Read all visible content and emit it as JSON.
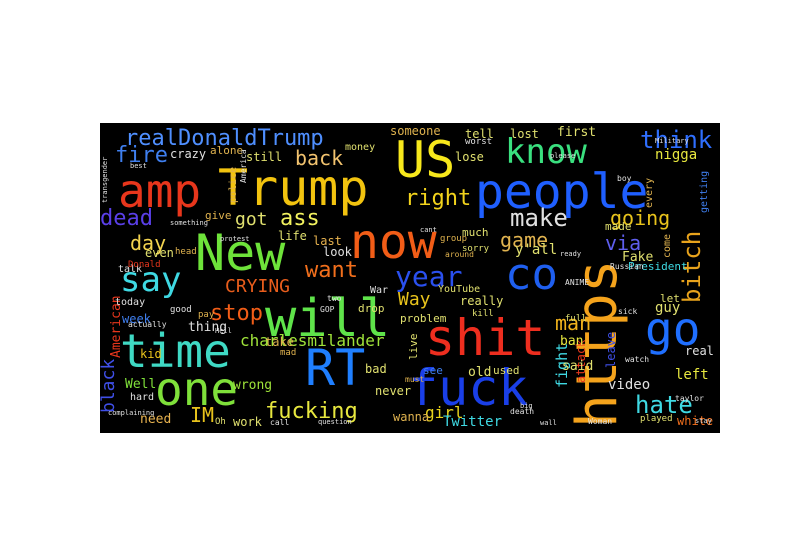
{
  "words": [
    {
      "text": "Trump",
      "color": "#f2c30f"
    },
    {
      "text": "people",
      "color": "#1f5fff"
    },
    {
      "text": "amp",
      "color": "#e8361c"
    },
    {
      "text": "US",
      "color": "#f7e81c"
    },
    {
      "text": "New",
      "color": "#6ee33a"
    },
    {
      "text": "now",
      "color": "#f25d17"
    },
    {
      "text": "will",
      "color": "#5fe34a"
    },
    {
      "text": "shit",
      "color": "#ee2e1f"
    },
    {
      "text": "https",
      "color": "#f4a31c"
    },
    {
      "text": "time",
      "color": "#3fd9c4"
    },
    {
      "text": "one",
      "color": "#7fe03a"
    },
    {
      "text": "RT",
      "color": "#1f7fff"
    },
    {
      "text": "fuck",
      "color": "#1a3fe8"
    },
    {
      "text": "go",
      "color": "#1f6fff"
    },
    {
      "text": "co",
      "color": "#1f5fef"
    },
    {
      "text": "know",
      "color": "#3ae07f"
    },
    {
      "text": "realDonaldTrump",
      "color": "#4f8fff"
    },
    {
      "text": "think",
      "color": "#2f6fff"
    },
    {
      "text": "say",
      "color": "#3fd9e3"
    },
    {
      "text": "year",
      "color": "#2a50ef"
    },
    {
      "text": "bitch",
      "color": "#e8a31c"
    },
    {
      "text": "dead",
      "color": "#5a3fe8"
    },
    {
      "text": "fire",
      "color": "#3f7fef"
    },
    {
      "text": "right",
      "color": "#f2d31c"
    },
    {
      "text": "make",
      "color": "#e0e0e0"
    },
    {
      "text": "going",
      "color": "#e8c31c"
    },
    {
      "text": "ass",
      "color": "#f2f25f"
    },
    {
      "text": "back",
      "color": "#f2c36f"
    },
    {
      "text": "day",
      "color": "#f2d34f"
    },
    {
      "text": "got",
      "color": "#e0e06f"
    },
    {
      "text": "want",
      "color": "#f26f1c"
    },
    {
      "text": "game",
      "color": "#e0b34f"
    },
    {
      "text": "stop",
      "color": "#f25d17"
    },
    {
      "text": "CRYING",
      "color": "#e85d1c"
    },
    {
      "text": "man",
      "color": "#f2b31c"
    },
    {
      "text": "hate",
      "color": "#3fd9e3"
    },
    {
      "text": "fucking",
      "color": "#e8e83f"
    },
    {
      "text": "Way",
      "color": "#e8c31c"
    },
    {
      "text": "via",
      "color": "#5f5fef"
    },
    {
      "text": "black",
      "color": "#3f4fe8"
    },
    {
      "text": "charlesmilander",
      "color": "#9fe33a"
    },
    {
      "text": "IM",
      "color": "#e8c31c"
    },
    {
      "text": "girl",
      "color": "#e8d31c"
    },
    {
      "text": "Twitter",
      "color": "#3fd9e3"
    },
    {
      "text": "video",
      "color": "#e0e0e0"
    },
    {
      "text": "white",
      "color": "#f26f1c"
    },
    {
      "text": "left",
      "color": "#e8e83f"
    },
    {
      "text": "need",
      "color": "#e8b34f"
    },
    {
      "text": "wrong",
      "color": "#9fe33a"
    },
    {
      "text": "thing",
      "color": "#e0e0e0"
    },
    {
      "text": "Well",
      "color": "#7fe03a"
    },
    {
      "text": "kid",
      "color": "#e8c31c"
    },
    {
      "text": "week",
      "color": "#3f7fef"
    },
    {
      "text": "American",
      "color": "#e8361c"
    },
    {
      "text": "fight",
      "color": "#3fd9e3"
    },
    {
      "text": "attack",
      "color": "#e8361c"
    },
    {
      "text": "guy",
      "color": "#e0e06f"
    },
    {
      "text": "said",
      "color": "#e0e06f"
    },
    {
      "text": "ban",
      "color": "#e8e83f"
    },
    {
      "text": "leave",
      "color": "#3f4fe8"
    },
    {
      "text": "real",
      "color": "#e0e0e0"
    },
    {
      "text": "y'all",
      "color": "#e0e06f"
    },
    {
      "text": "Fake",
      "color": "#e0e06f"
    },
    {
      "text": "President",
      "color": "#3fd9e3"
    },
    {
      "text": "nigga",
      "color": "#e8e83f"
    },
    {
      "text": "crazy",
      "color": "#e0e0e0"
    },
    {
      "text": "someone",
      "color": "#e0b34f"
    },
    {
      "text": "tell",
      "color": "#e0e06f"
    },
    {
      "text": "lost",
      "color": "#e0e06f"
    },
    {
      "text": "first",
      "color": "#e0e06f"
    },
    {
      "text": "still",
      "color": "#e0e06f"
    },
    {
      "text": "lose",
      "color": "#e0e06f"
    },
    {
      "text": "alone",
      "color": "#e0b34f"
    },
    {
      "text": "money",
      "color": "#e0e06f"
    },
    {
      "text": "give",
      "color": "#e0b34f"
    },
    {
      "text": "life",
      "color": "#e0e06f"
    },
    {
      "text": "last",
      "color": "#e8b34f"
    },
    {
      "text": "look",
      "color": "#e0e0e0"
    },
    {
      "text": "even",
      "color": "#e0e06f"
    },
    {
      "text": "talk",
      "color": "#e0e0e0"
    },
    {
      "text": "today",
      "color": "#e0e0e0"
    },
    {
      "text": "really",
      "color": "#e0e06f"
    },
    {
      "text": "problem",
      "color": "#e0e06f"
    },
    {
      "text": "bad",
      "color": "#e0e06f"
    },
    {
      "text": "never",
      "color": "#e0e06f"
    },
    {
      "text": "work",
      "color": "#e0e06f"
    },
    {
      "text": "wanna",
      "color": "#e0b34f"
    },
    {
      "text": "take",
      "color": "#e0b34f"
    },
    {
      "text": "hard",
      "color": "#e0e0e0"
    },
    {
      "text": "old",
      "color": "#e0e06f"
    },
    {
      "text": "used",
      "color": "#e0e06f"
    },
    {
      "text": "see",
      "color": "#3f7fef"
    },
    {
      "text": "drop",
      "color": "#e0e06f"
    },
    {
      "text": "live",
      "color": "#e0e06f"
    },
    {
      "text": "much",
      "color": "#e0e06f"
    },
    {
      "text": "made",
      "color": "#e0e06f"
    },
    {
      "text": "let",
      "color": "#e0e06f"
    },
    {
      "text": "full",
      "color": "#e0e06f"
    },
    {
      "text": "getting",
      "color": "#3f7fef"
    },
    {
      "text": "every",
      "color": "#e0b34f"
    },
    {
      "text": "come",
      "color": "#e0b34f"
    },
    {
      "text": "War",
      "color": "#e0e0e0"
    },
    {
      "text": "YouTube",
      "color": "#e0e06f"
    },
    {
      "text": "group",
      "color": "#e0b34f"
    },
    {
      "text": "police",
      "color": "#e0b34f"
    },
    {
      "text": "kill",
      "color": "#e0e06f"
    },
    {
      "text": "Donald",
      "color": "#e8361c"
    },
    {
      "text": "head",
      "color": "#e0b34f"
    },
    {
      "text": "mad",
      "color": "#e0b34f"
    },
    {
      "text": "pay",
      "color": "#e0b34f"
    },
    {
      "text": "good",
      "color": "#e0e0e0"
    },
    {
      "text": "GOP",
      "color": "#e0e0e0"
    },
    {
      "text": "ANIME",
      "color": "#e0e0e0"
    },
    {
      "text": "sorry",
      "color": "#e0e06f"
    },
    {
      "text": "must",
      "color": "#e0b34f"
    },
    {
      "text": "death",
      "color": "#e0e0e0"
    },
    {
      "text": "worst",
      "color": "#e0e0e0"
    },
    {
      "text": "Oh",
      "color": "#e0e06f"
    },
    {
      "text": "played",
      "color": "#e0e06f"
    },
    {
      "text": "Woman",
      "color": "#e0e0e0"
    },
    {
      "text": "Russian",
      "color": "#e0e0e0"
    },
    {
      "text": "sick",
      "color": "#e0e0e0"
    },
    {
      "text": "boy",
      "color": "#e0e0e0"
    },
    {
      "text": "two",
      "color": "#e0e0e0"
    },
    {
      "text": "around",
      "color": "#e0b34f"
    },
    {
      "text": "call",
      "color": "#e0e0e0"
    },
    {
      "text": "actually",
      "color": "#e0e0e0"
    },
    {
      "text": "watch",
      "color": "#e0e0e0"
    },
    {
      "text": "taylor",
      "color": "#e0e0e0"
    },
    {
      "text": "stay",
      "color": "#e0e0e0"
    },
    {
      "text": "America",
      "color": "#e0e0e0"
    },
    {
      "text": "Military",
      "color": "#e0e0e0"
    },
    {
      "text": "transgender",
      "color": "#e0e0e0"
    },
    {
      "text": "please",
      "color": "#e0e0e0"
    },
    {
      "text": "question",
      "color": "#e0e0e0"
    },
    {
      "text": "cant",
      "color": "#e0e0e0"
    },
    {
      "text": "complaining",
      "color": "#e0e0e0"
    },
    {
      "text": "wall",
      "color": "#e0e0e0"
    },
    {
      "text": "big",
      "color": "#e0e0e0"
    },
    {
      "text": "protest",
      "color": "#e0e0e0"
    },
    {
      "text": "something",
      "color": "#e0e0e0"
    },
    {
      "text": "Hell",
      "color": "#e0e0e0"
    },
    {
      "text": "best",
      "color": "#e0e0e0"
    },
    {
      "text": "ready",
      "color": "#e0e0e0"
    }
  ]
}
